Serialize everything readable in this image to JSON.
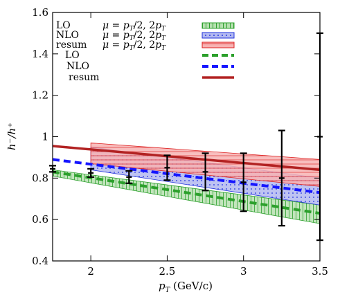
{
  "chart_data": {
    "type": "line",
    "xlabel": "p_T (GeV/c)",
    "ylabel": "h⁻/h⁺",
    "xlim": [
      1.75,
      3.5
    ],
    "ylim": [
      0.4,
      1.6
    ],
    "xticks": [
      2,
      2.5,
      3,
      3.5
    ],
    "yticks": [
      0.4,
      0.6,
      0.8,
      1,
      1.2,
      1.4,
      1.6
    ],
    "grid": false,
    "legend_position": "top-left",
    "bands": [
      {
        "name": "LO μ = p_T/2, 2p_T",
        "color": "#2ca02c",
        "fill": "#b7e0b0",
        "hatch": "vertical",
        "x": [
          1.75,
          3.5
        ],
        "lower": [
          0.81,
          0.58
        ],
        "upper": [
          0.84,
          0.67
        ]
      },
      {
        "name": "NLO μ = p_T/2, 2p_T",
        "color": "#2233dd",
        "fill": "#b3b9f0",
        "hatch": "dots",
        "x": [
          2.0,
          3.5
        ],
        "lower": [
          0.84,
          0.67
        ],
        "upper": [
          0.95,
          0.8
        ]
      },
      {
        "name": "resum μ = p_T/2, 2p_T",
        "color": "#dd2222",
        "fill": "#f7b3b3",
        "hatch": "horizontal",
        "x": [
          2.0,
          3.5
        ],
        "lower": [
          0.87,
          0.76
        ],
        "upper": [
          0.97,
          0.89
        ]
      }
    ],
    "series": [
      {
        "name": "LO",
        "color": "#2ca02c",
        "dash": "dashed",
        "x": [
          1.75,
          3.5
        ],
        "y": [
          0.83,
          0.63
        ]
      },
      {
        "name": "NLO",
        "color": "#1515ff",
        "dash": "dashed",
        "x": [
          1.75,
          3.5
        ],
        "y": [
          0.89,
          0.73
        ]
      },
      {
        "name": "resum",
        "color": "#b22222",
        "dash": "solid",
        "x": [
          1.75,
          3.5
        ],
        "y": [
          0.955,
          0.84
        ]
      }
    ],
    "data_points": {
      "color": "#000000",
      "x": [
        1.75,
        2.0,
        2.25,
        2.5,
        2.75,
        3.0,
        3.25,
        3.5
      ],
      "y": [
        0.845,
        0.825,
        0.805,
        0.85,
        0.83,
        0.78,
        0.8,
        1.0
      ],
      "err_low": [
        0.015,
        0.02,
        0.03,
        0.06,
        0.09,
        0.14,
        0.23,
        0.5
      ],
      "err_high": [
        0.015,
        0.02,
        0.03,
        0.06,
        0.09,
        0.14,
        0.23,
        0.5
      ]
    },
    "legend": {
      "band_labels": [
        {
          "name": "LO",
          "scale": "μ = p_T/2, 2p_T"
        },
        {
          "name": "NLO",
          "scale": "μ = p_T/2, 2p_T"
        },
        {
          "name": "resum",
          "scale": "μ = p_T/2, 2p_T"
        }
      ],
      "line_labels": [
        "LO",
        "NLO",
        "resum"
      ]
    }
  }
}
